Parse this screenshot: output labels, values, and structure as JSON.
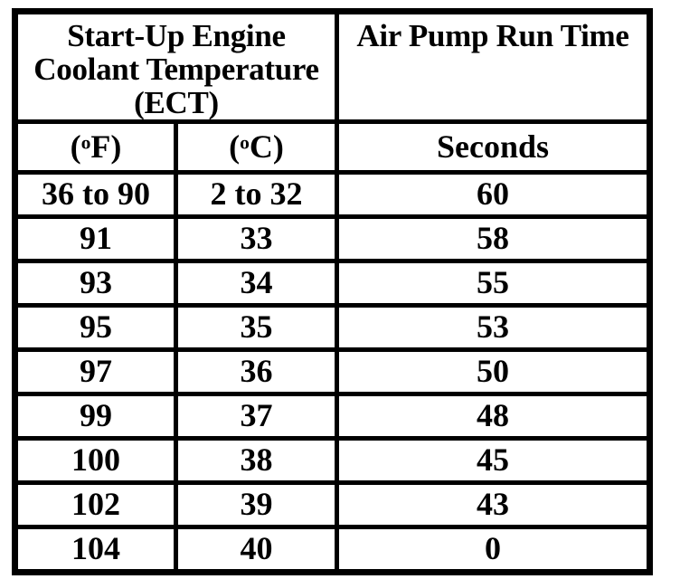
{
  "colors": {
    "border": "#000000",
    "text": "#000000",
    "background": "#ffffff"
  },
  "table": {
    "header": {
      "ect_line1": "Start-Up Engine",
      "ect_line2": "Coolant Temperature",
      "ect_line3": "(ECT)",
      "air_pump": "Air Pump Run Time"
    },
    "units": {
      "f_open": "(",
      "f_deg": "o",
      "f_rest": "F)",
      "c_open": "(",
      "c_deg": "o",
      "c_rest": "C)",
      "seconds": "Seconds"
    },
    "rows": [
      {
        "f": "36 to 90",
        "c": "2 to 32",
        "s": "60"
      },
      {
        "f": "91",
        "c": "33",
        "s": "58"
      },
      {
        "f": "93",
        "c": "34",
        "s": "55"
      },
      {
        "f": "95",
        "c": "35",
        "s": "53"
      },
      {
        "f": "97",
        "c": "36",
        "s": "50"
      },
      {
        "f": "99",
        "c": "37",
        "s": "48"
      },
      {
        "f": "100",
        "c": "38",
        "s": "45"
      },
      {
        "f": "102",
        "c": "39",
        "s": "43"
      },
      {
        "f": "104",
        "c": "40",
        "s": "0"
      }
    ]
  }
}
